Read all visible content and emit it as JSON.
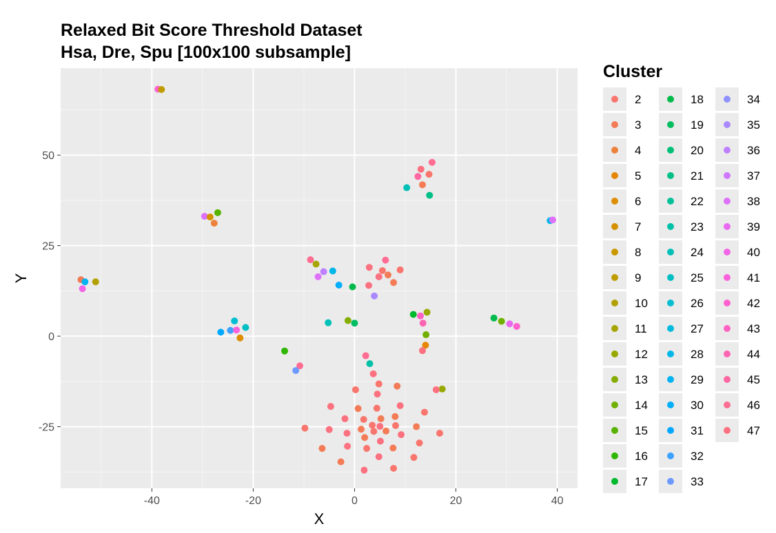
{
  "chart_data": {
    "type": "scatter",
    "title": [
      "Relaxed Bit Score Threshold Dataset",
      "Hsa, Dre, Spu [100x100 subsample]"
    ],
    "xlabel": "X",
    "ylabel": "Y",
    "xlim": [
      -58,
      44
    ],
    "ylim": [
      -42,
      74
    ],
    "x_ticks": [
      -40,
      -20,
      0,
      20,
      40
    ],
    "y_ticks": [
      -25,
      0,
      25,
      50
    ],
    "x_tick_labels": [
      "-40",
      "-20",
      "0",
      "20",
      "40"
    ],
    "y_tick_labels": [
      "-25",
      "0",
      "25",
      "50"
    ],
    "grid": true,
    "legend": {
      "title": "Cluster",
      "placement": "right",
      "columns": [
        [
          "2",
          "3",
          "4",
          "5",
          "6",
          "7",
          "8",
          "9",
          "10",
          "11",
          "12",
          "13",
          "14",
          "15",
          "16",
          "17"
        ],
        [
          "18",
          "19",
          "20",
          "21",
          "22",
          "23",
          "24",
          "25",
          "26",
          "27",
          "28",
          "29",
          "30",
          "31",
          "32",
          "33"
        ],
        [
          "34",
          "35",
          "36",
          "37",
          "38",
          "39",
          "40",
          "41",
          "42",
          "43",
          "44",
          "45",
          "46",
          "47"
        ]
      ]
    },
    "points": [
      {
        "x": -38.8,
        "y": 68.2,
        "c": "42"
      },
      {
        "x": -38.1,
        "y": 68.1,
        "c": "9"
      },
      {
        "x": -29.6,
        "y": 33.1,
        "c": "38"
      },
      {
        "x": -28.5,
        "y": 32.9,
        "c": "7"
      },
      {
        "x": -27.0,
        "y": 34.1,
        "c": "15"
      },
      {
        "x": -27.7,
        "y": 31.2,
        "c": "4"
      },
      {
        "x": -54.0,
        "y": 15.6,
        "c": "3"
      },
      {
        "x": -53.2,
        "y": 15.0,
        "c": "29"
      },
      {
        "x": -51.1,
        "y": 15.0,
        "c": "10"
      },
      {
        "x": -53.7,
        "y": 13.1,
        "c": "40"
      },
      {
        "x": -23.7,
        "y": 4.2,
        "c": "26"
      },
      {
        "x": -21.5,
        "y": 2.4,
        "c": "25"
      },
      {
        "x": -26.4,
        "y": 1.1,
        "c": "31"
      },
      {
        "x": -24.5,
        "y": 1.6,
        "c": "32"
      },
      {
        "x": -23.3,
        "y": 1.7,
        "c": "41"
      },
      {
        "x": -22.6,
        "y": -0.5,
        "c": "6"
      },
      {
        "x": -13.8,
        "y": -4.1,
        "c": "16"
      },
      {
        "x": -10.8,
        "y": -8.2,
        "c": "46"
      },
      {
        "x": -11.6,
        "y": -9.5,
        "c": "33"
      },
      {
        "x": -8.7,
        "y": 21.1,
        "c": "46"
      },
      {
        "x": -7.6,
        "y": 19.9,
        "c": "11"
      },
      {
        "x": -6.1,
        "y": 17.8,
        "c": "36"
      },
      {
        "x": -7.2,
        "y": 16.4,
        "c": "38"
      },
      {
        "x": -4.3,
        "y": 18.0,
        "c": "28"
      },
      {
        "x": -3.1,
        "y": 14.1,
        "c": "30"
      },
      {
        "x": -0.4,
        "y": 13.6,
        "c": "18"
      },
      {
        "x": 2.9,
        "y": 19.0,
        "c": "47"
      },
      {
        "x": 5.5,
        "y": 18.1,
        "c": "2"
      },
      {
        "x": 6.1,
        "y": 21.0,
        "c": "46"
      },
      {
        "x": 4.8,
        "y": 16.4,
        "c": "47"
      },
      {
        "x": 6.6,
        "y": 16.9,
        "c": "3"
      },
      {
        "x": 9.0,
        "y": 18.3,
        "c": "2"
      },
      {
        "x": 2.8,
        "y": 14.0,
        "c": "47"
      },
      {
        "x": 7.7,
        "y": 14.8,
        "c": "3"
      },
      {
        "x": 3.9,
        "y": 11.1,
        "c": "35"
      },
      {
        "x": -5.2,
        "y": 3.7,
        "c": "24"
      },
      {
        "x": -1.3,
        "y": 4.3,
        "c": "13"
      },
      {
        "x": 0.0,
        "y": 3.6,
        "c": "19"
      },
      {
        "x": 11.6,
        "y": 6.0,
        "c": "17"
      },
      {
        "x": 14.3,
        "y": 6.6,
        "c": "12"
      },
      {
        "x": 13.0,
        "y": 5.6,
        "c": "43"
      },
      {
        "x": 13.5,
        "y": 3.6,
        "c": "44"
      },
      {
        "x": 14.1,
        "y": 0.4,
        "c": "14"
      },
      {
        "x": 14.0,
        "y": -2.5,
        "c": "5"
      },
      {
        "x": 13.4,
        "y": -4.0,
        "c": "47"
      },
      {
        "x": 17.3,
        "y": -14.6,
        "c": "12"
      },
      {
        "x": 16.1,
        "y": -14.8,
        "c": "47"
      },
      {
        "x": 27.5,
        "y": 5.0,
        "c": "18"
      },
      {
        "x": 29.0,
        "y": 4.1,
        "c": "14"
      },
      {
        "x": 30.6,
        "y": 3.4,
        "c": "39"
      },
      {
        "x": 32.0,
        "y": 2.7,
        "c": "42"
      },
      {
        "x": 38.6,
        "y": 31.9,
        "c": "28"
      },
      {
        "x": 39.1,
        "y": 32.1,
        "c": "38"
      },
      {
        "x": 15.3,
        "y": 48.0,
        "c": "46"
      },
      {
        "x": 13.1,
        "y": 46.1,
        "c": "47"
      },
      {
        "x": 14.7,
        "y": 44.7,
        "c": "2"
      },
      {
        "x": 12.5,
        "y": 44.1,
        "c": "45"
      },
      {
        "x": 13.4,
        "y": 41.8,
        "c": "3"
      },
      {
        "x": 10.3,
        "y": 41.0,
        "c": "24"
      },
      {
        "x": 14.8,
        "y": 38.9,
        "c": "21"
      },
      {
        "x": 2.2,
        "y": -5.4,
        "c": "46"
      },
      {
        "x": 3.0,
        "y": -7.6,
        "c": "23"
      },
      {
        "x": 3.7,
        "y": -10.4,
        "c": "47"
      },
      {
        "x": 4.8,
        "y": -13.2,
        "c": "2"
      },
      {
        "x": 8.4,
        "y": -13.8,
        "c": "3"
      },
      {
        "x": 4.5,
        "y": -16.0,
        "c": "47"
      },
      {
        "x": 0.2,
        "y": -14.8,
        "c": "2"
      },
      {
        "x": -4.7,
        "y": -19.4,
        "c": "47"
      },
      {
        "x": 0.7,
        "y": -20.0,
        "c": "3"
      },
      {
        "x": 4.4,
        "y": -19.9,
        "c": "2"
      },
      {
        "x": 9.0,
        "y": -19.2,
        "c": "47"
      },
      {
        "x": 13.8,
        "y": -21.0,
        "c": "2"
      },
      {
        "x": 8.0,
        "y": -22.2,
        "c": "3"
      },
      {
        "x": -1.9,
        "y": -22.8,
        "c": "47"
      },
      {
        "x": 1.8,
        "y": -23.0,
        "c": "2"
      },
      {
        "x": 5.2,
        "y": -22.8,
        "c": "3"
      },
      {
        "x": -9.8,
        "y": -25.4,
        "c": "2"
      },
      {
        "x": -5.0,
        "y": -25.8,
        "c": "47"
      },
      {
        "x": 1.3,
        "y": -25.7,
        "c": "3"
      },
      {
        "x": 3.5,
        "y": -24.6,
        "c": "2"
      },
      {
        "x": 5.0,
        "y": -24.9,
        "c": "47"
      },
      {
        "x": 8.1,
        "y": -24.7,
        "c": "2"
      },
      {
        "x": 12.2,
        "y": -25.0,
        "c": "3"
      },
      {
        "x": -1.5,
        "y": -26.8,
        "c": "47"
      },
      {
        "x": 3.8,
        "y": -26.3,
        "c": "2"
      },
      {
        "x": 6.2,
        "y": -26.2,
        "c": "3"
      },
      {
        "x": 9.2,
        "y": -27.2,
        "c": "47"
      },
      {
        "x": 16.8,
        "y": -26.8,
        "c": "2"
      },
      {
        "x": 2.0,
        "y": -28.0,
        "c": "3"
      },
      {
        "x": 5.1,
        "y": -29.0,
        "c": "47"
      },
      {
        "x": 12.8,
        "y": -29.5,
        "c": "2"
      },
      {
        "x": -6.4,
        "y": -31.0,
        "c": "3"
      },
      {
        "x": -1.4,
        "y": -30.4,
        "c": "47"
      },
      {
        "x": 2.4,
        "y": -31.0,
        "c": "2"
      },
      {
        "x": 7.6,
        "y": -30.9,
        "c": "3"
      },
      {
        "x": 4.8,
        "y": -33.3,
        "c": "47"
      },
      {
        "x": 11.7,
        "y": -33.5,
        "c": "2"
      },
      {
        "x": -2.7,
        "y": -34.7,
        "c": "3"
      },
      {
        "x": 1.9,
        "y": -37.0,
        "c": "47"
      },
      {
        "x": 7.7,
        "y": -36.5,
        "c": "2"
      }
    ]
  }
}
